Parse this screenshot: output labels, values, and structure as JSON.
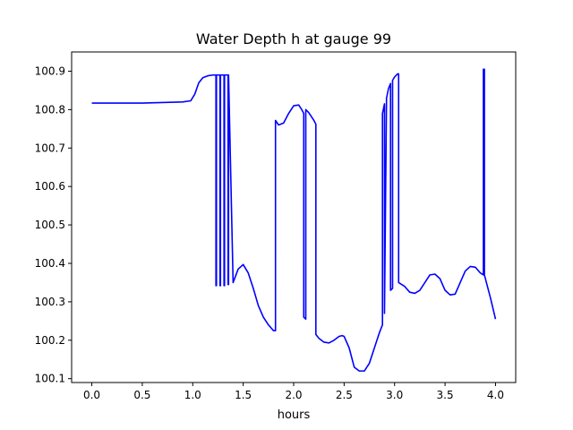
{
  "chart_data": {
    "type": "line",
    "title": "Water Depth h at gauge 99",
    "xlabel": "hours",
    "ylabel": "",
    "xlim": [
      -0.2,
      4.2
    ],
    "ylim": [
      100.09,
      100.95
    ],
    "xticks": [
      0.0,
      0.5,
      1.0,
      1.5,
      2.0,
      2.5,
      3.0,
      3.5,
      4.0
    ],
    "xtick_labels": [
      "0.0",
      "0.5",
      "1.0",
      "1.5",
      "2.0",
      "2.5",
      "3.0",
      "3.5",
      "4.0"
    ],
    "yticks": [
      100.1,
      100.2,
      100.3,
      100.4,
      100.5,
      100.6,
      100.7,
      100.8,
      100.9
    ],
    "ytick_labels": [
      "100.1",
      "100.2",
      "100.3",
      "100.4",
      "100.5",
      "100.6",
      "100.7",
      "100.8",
      "100.9"
    ],
    "grid": false,
    "series": [
      {
        "color": "#0000ff",
        "x": [
          0.0,
          0.5,
          0.9,
          0.98,
          1.02,
          1.06,
          1.1,
          1.15,
          1.2,
          1.23,
          1.23,
          1.235,
          1.235,
          1.27,
          1.27,
          1.275,
          1.275,
          1.31,
          1.31,
          1.315,
          1.315,
          1.35,
          1.35,
          1.355,
          1.355,
          1.4,
          1.45,
          1.5,
          1.55,
          1.6,
          1.65,
          1.7,
          1.75,
          1.8,
          1.82,
          1.82,
          1.85,
          1.9,
          1.95,
          2.0,
          2.05,
          2.08,
          2.1,
          2.1,
          2.12,
          2.12,
          2.15,
          2.2,
          2.22,
          2.22,
          2.25,
          2.3,
          2.35,
          2.4,
          2.45,
          2.48,
          2.5,
          2.55,
          2.6,
          2.65,
          2.7,
          2.75,
          2.8,
          2.85,
          2.88,
          2.88,
          2.9,
          2.9,
          2.92,
          2.94,
          2.96,
          2.96,
          2.98,
          2.98,
          3.0,
          3.03,
          3.04,
          3.04,
          3.1,
          3.15,
          3.2,
          3.25,
          3.3,
          3.35,
          3.4,
          3.45,
          3.5,
          3.55,
          3.6,
          3.65,
          3.7,
          3.75,
          3.8,
          3.85,
          3.88,
          3.88,
          3.89,
          3.89,
          3.9,
          3.95,
          4.0
        ],
        "y": [
          100.817,
          100.817,
          100.82,
          100.823,
          100.84,
          100.87,
          100.883,
          100.888,
          100.89,
          100.89,
          100.342,
          100.342,
          100.89,
          100.89,
          100.342,
          100.342,
          100.89,
          100.89,
          100.342,
          100.342,
          100.89,
          100.89,
          100.345,
          100.345,
          100.89,
          100.35,
          100.385,
          100.397,
          100.375,
          100.335,
          100.29,
          100.26,
          100.24,
          100.225,
          100.225,
          100.772,
          100.76,
          100.765,
          100.79,
          100.81,
          100.812,
          100.8,
          100.79,
          100.26,
          100.255,
          100.8,
          100.792,
          100.772,
          100.762,
          100.215,
          100.205,
          100.195,
          100.193,
          100.2,
          100.21,
          100.212,
          100.21,
          100.18,
          100.13,
          100.12,
          100.12,
          100.14,
          100.18,
          100.22,
          100.24,
          100.79,
          100.815,
          100.27,
          100.83,
          100.855,
          100.868,
          100.33,
          100.335,
          100.876,
          100.885,
          100.893,
          100.893,
          100.35,
          100.34,
          100.325,
          100.322,
          100.33,
          100.35,
          100.37,
          100.372,
          100.36,
          100.33,
          100.318,
          100.32,
          100.35,
          100.38,
          100.392,
          100.39,
          100.375,
          100.37,
          100.905,
          100.905,
          100.37,
          100.36,
          100.31,
          100.255
        ]
      }
    ]
  }
}
